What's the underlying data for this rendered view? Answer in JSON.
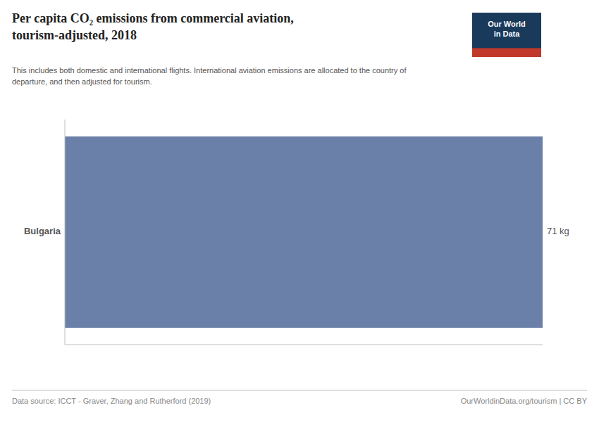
{
  "chart_data": {
    "type": "bar",
    "orientation": "horizontal",
    "title": "Per capita CO₂ emissions from commercial aviation,\ntourism-adjusted, 2018",
    "subtitle": "This includes both domestic and international flights. International aviation emissions are allocated to the country of\ndeparture, and then adjusted for tourism.",
    "categories": [
      "Bulgaria"
    ],
    "values": [
      71
    ],
    "value_labels": [
      "71 kg"
    ],
    "data_labels": true,
    "color": "#6b80a8",
    "xlim": [
      0,
      71
    ],
    "xticks": [],
    "tick_labels": false,
    "grid": false,
    "data_source": "Data source: ICCT - Graver, Zhang and Rutherford (2019)",
    "url": "OurWorldinData.org/tourism | CC BY",
    "logo_text": "Our World\nin Data"
  }
}
